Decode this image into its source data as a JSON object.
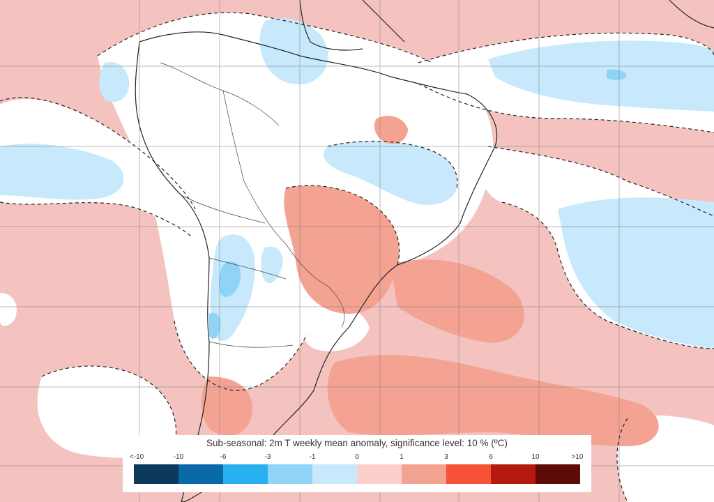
{
  "map": {
    "title": "Sub-seasonal: 2m T weekly mean anomaly, significance level: 10 % (ºC)",
    "legend": {
      "ticks": [
        "<-10",
        "-10",
        "-6",
        "-3",
        "-1",
        "0",
        "1",
        "3",
        "6",
        "10",
        ">10"
      ],
      "colors": [
        "#0b3a5c",
        "#0a6aa8",
        "#2ab0ee",
        "#8fd3f7",
        "#c7e9fb",
        "#fbd0cc",
        "#f4a393",
        "#f65236",
        "#b51a10",
        "#5e0a05"
      ]
    },
    "fill_colors": {
      "ocean_positive": "#f4c3c0",
      "neutral": "#ffffff",
      "negative_light": "#c7e9fb",
      "negative_mid": "#8fd3f7",
      "positive_mid": "#f4a393"
    }
  }
}
